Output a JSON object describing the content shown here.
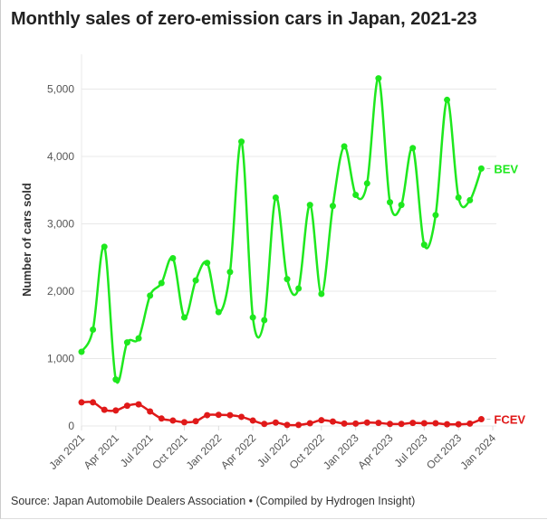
{
  "chart_data": {
    "type": "line",
    "title": "Monthly sales of zero-emission cars in Japan, 2021-23",
    "source": "Source: Japan Automobile Dealers Association • (Compiled by Hydrogen Insight)",
    "ylabel": "Number of cars sold",
    "xlabel": "",
    "ylim": [
      0,
      5200
    ],
    "yticks": [
      0,
      1000,
      2000,
      3000,
      4000,
      5000
    ],
    "ytick_labels": [
      "0",
      "1,000",
      "2,000",
      "3,000",
      "4,000",
      "5,000"
    ],
    "xticks": [
      "Jan 2021",
      "Apr 2021",
      "Jul 2021",
      "Oct 2021",
      "Jan 2022",
      "Apr 2022",
      "Jul 2022",
      "Oct 2022",
      "Jan 2023",
      "Apr 2023",
      "Jul 2023",
      "Oct 2023",
      "Jan 2024"
    ],
    "x_start": "2021-01",
    "x_end": "2023-12",
    "grid": true,
    "series": [
      {
        "name": "BEV",
        "color": "#1ee81e",
        "values": [
          1100,
          1430,
          2660,
          690,
          1240,
          1300,
          1935,
          2120,
          2490,
          1610,
          2160,
          2420,
          1690,
          2285,
          4220,
          1610,
          1570,
          3390,
          2180,
          2040,
          3280,
          1960,
          3265,
          4150,
          3430,
          3600,
          5160,
          3320,
          3280,
          4125,
          2690,
          3130,
          4840,
          3390,
          3350,
          3820
        ]
      },
      {
        "name": "FCEV",
        "color": "#e01919",
        "values": [
          350,
          350,
          240,
          230,
          300,
          320,
          215,
          110,
          80,
          55,
          70,
          160,
          165,
          160,
          135,
          80,
          30,
          50,
          15,
          15,
          40,
          85,
          65,
          35,
          35,
          50,
          45,
          30,
          30,
          45,
          40,
          40,
          25,
          25,
          35,
          100
        ]
      }
    ]
  }
}
